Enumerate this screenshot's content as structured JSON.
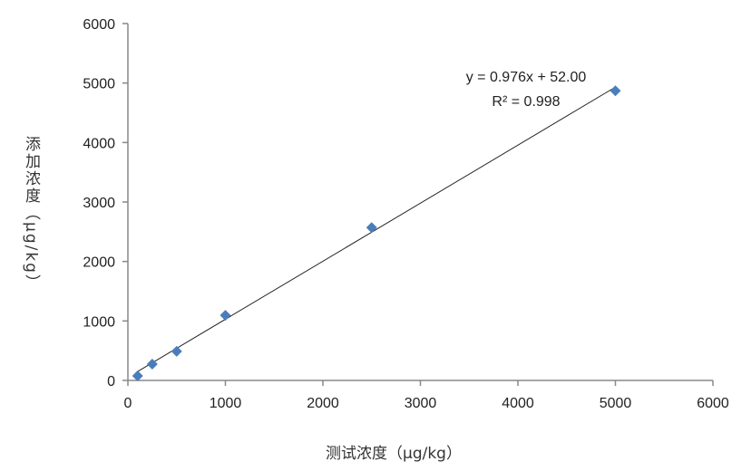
{
  "chart_data": {
    "type": "scatter",
    "title": "",
    "xlabel": "测试浓度（μg/kg）",
    "ylabel": "添加浓度（μg/kg）",
    "xlim": [
      0,
      6000
    ],
    "ylim": [
      0,
      6000
    ],
    "xticks": [
      0,
      1000,
      2000,
      3000,
      4000,
      5000,
      6000
    ],
    "yticks": [
      0,
      1000,
      2000,
      3000,
      4000,
      5000,
      6000
    ],
    "grid": false,
    "marker_color": "#4a7ebb",
    "points": [
      {
        "x": 100,
        "y": 76
      },
      {
        "x": 250,
        "y": 275
      },
      {
        "x": 500,
        "y": 490
      },
      {
        "x": 1000,
        "y": 1095
      },
      {
        "x": 2500,
        "y": 2570
      },
      {
        "x": 5000,
        "y": 4870
      }
    ],
    "trendline": {
      "type": "linear",
      "slope": 0.976,
      "intercept": 52.0,
      "x_range": [
        100,
        5000
      ]
    },
    "annotations": {
      "equation": "y = 0.976x + 52.00",
      "r_squared": "R² = 0.998"
    }
  }
}
